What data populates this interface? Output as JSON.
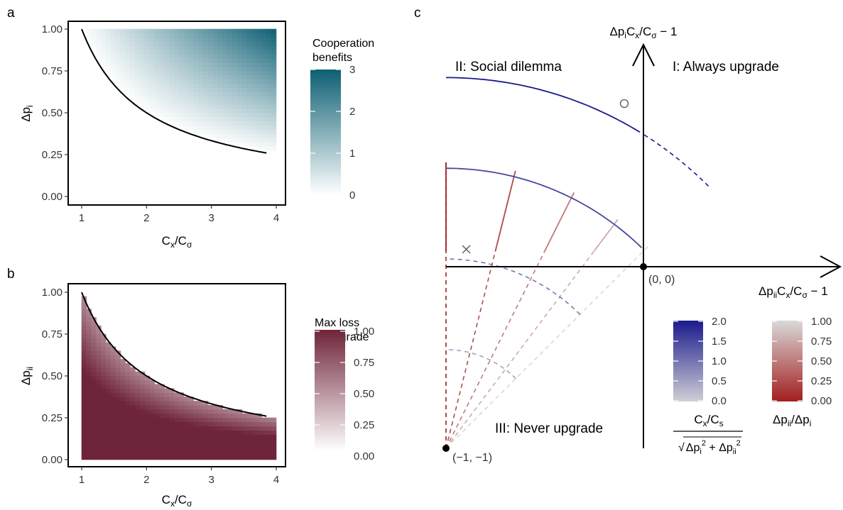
{
  "chart_data": [
    {
      "panel": "a",
      "type": "heatmap",
      "xlabel": "Cx/Cσ",
      "ylabel": "Δpi",
      "x_ticks": [
        1,
        2,
        3,
        4
      ],
      "y_ticks": [
        "0.00",
        "0.25",
        "0.50",
        "0.75",
        "1.00"
      ],
      "xlim": [
        1,
        4
      ],
      "ylim": [
        0,
        1
      ],
      "curve": "Δpi · Cx/Cσ = 1",
      "legend_title": "Cooperation benefits",
      "legend_ticks": [
        0,
        1,
        2,
        3
      ],
      "color_low": "#ffffff",
      "color_high": "#0d5f73"
    },
    {
      "panel": "b",
      "type": "heatmap",
      "xlabel": "Cx/Cσ",
      "ylabel": "Δpii",
      "x_ticks": [
        1,
        2,
        3,
        4
      ],
      "y_ticks": [
        "0.00",
        "0.25",
        "0.50",
        "0.75",
        "1.00"
      ],
      "xlim": [
        1,
        4
      ],
      "ylim": [
        0,
        1
      ],
      "curve": "Δpii · Cx/Cσ = 1",
      "legend_title": [
        "Max loss",
        "of upgrade"
      ],
      "legend_ticks": [
        "0.00",
        "0.25",
        "0.50",
        "0.75",
        "1.00"
      ],
      "color_low": "#ffffff",
      "color_high": "#6e2439"
    },
    {
      "panel": "c",
      "type": "line",
      "xlabel": "ΔpiiCx/Cσ − 1",
      "ylabel": "ΔpiCx/Cσ − 1",
      "origin_label": "(0, 0)",
      "corner_label": "(−1, −1)",
      "regions": [
        "I: Always upgrade",
        "II: Social dilemma",
        "III: Never upgrade"
      ],
      "radius_levels": [
        0.5,
        1.0,
        1.5,
        2.0
      ],
      "ratio_levels": [
        0.0,
        0.25,
        0.5,
        0.75,
        1.0
      ],
      "legend_radius": {
        "title": "Cx/Cs",
        "ticks": [
          "0.0",
          "0.5",
          "1.0",
          "1.5",
          "2.0"
        ],
        "color_low": "#cfcfd6",
        "color_high": "#1a1a8c"
      },
      "legend_ratio": {
        "title": "Δpii/Δpi",
        "ticks": [
          "0.00",
          "0.25",
          "0.50",
          "0.75",
          "1.00"
        ],
        "color_low": "#a31e1e",
        "color_high": "#d9d9d9"
      }
    }
  ],
  "panels": {
    "a": "a",
    "b": "b",
    "c": "c"
  }
}
